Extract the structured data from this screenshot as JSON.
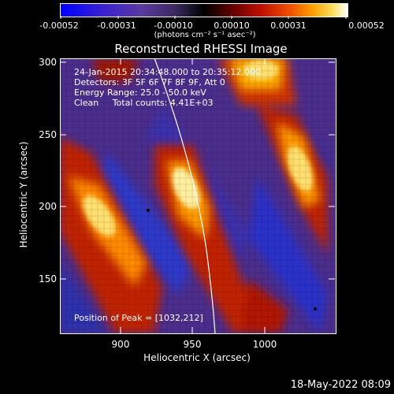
{
  "colorbar": {
    "tick_labels": [
      "-0.00052",
      "-0.00031",
      "-0.00010",
      "0.00010",
      "0.00031",
      "0.00052"
    ],
    "unit_label": "(photons cm⁻² s⁻¹ asec⁻²)"
  },
  "plot": {
    "title": "Reconstructed RHESSI Image",
    "xlabel": "Heliocentric X (arcsec)",
    "ylabel": "Heliocentric Y (arcsec)",
    "x_ticks": [
      "900",
      "950",
      "1000"
    ],
    "y_ticks": [
      "300",
      "250",
      "200",
      "150"
    ],
    "info": {
      "time_range": "24-Jan-2015 20:34:48.000 to 20:35:12.000",
      "detectors": "Detectors: 3F 5F 6F 7F 8F 9F, Att 0",
      "energy": "Energy Range: 25.0 - 50.0 keV",
      "clean": "Clean     Total counts: 4.41E+03",
      "peak": "Position of Peak = [1032,212]"
    }
  },
  "footer": {
    "timestamp": "18-May-2022 08:09"
  }
}
